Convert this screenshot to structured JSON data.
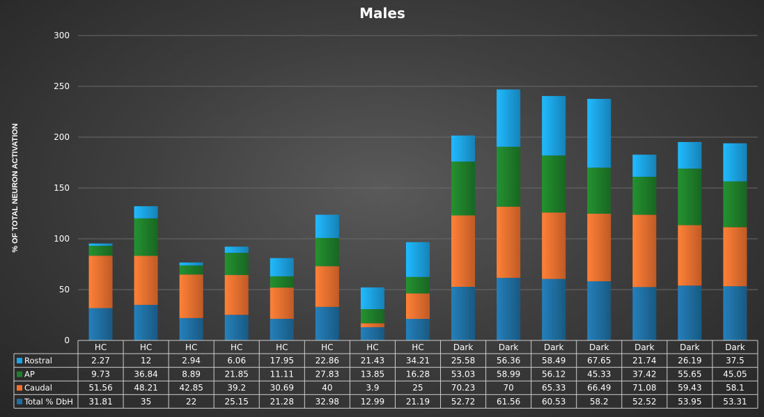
{
  "chart_data": {
    "type": "bar",
    "stacked": true,
    "title": "Males",
    "ylabel": "% OF TOTAL NEURON ACTIVATION",
    "ylim": [
      0,
      300
    ],
    "yticks": [
      0,
      50,
      100,
      150,
      200,
      250,
      300
    ],
    "grid": true,
    "legend": "data table below chart",
    "categories": [
      "HC",
      "HC",
      "HC",
      "HC",
      "HC",
      "HC",
      "HC",
      "HC",
      "Dark",
      "Dark",
      "Dark",
      "Dark",
      "Dark",
      "Dark",
      "Dark"
    ],
    "series": [
      {
        "name": "Total % DbH",
        "color": "#1f6fa3",
        "values": [
          31.81,
          35,
          22,
          25.15,
          21.28,
          32.98,
          12.99,
          21.19,
          52.72,
          61.56,
          60.53,
          58.2,
          52.52,
          53.95,
          53.31
        ]
      },
      {
        "name": "Caudal",
        "color": "#f07030",
        "values": [
          51.56,
          48.21,
          42.85,
          39.2,
          30.69,
          40,
          3.9,
          25,
          70.23,
          70,
          65.33,
          66.49,
          71.08,
          59.43,
          58.1
        ]
      },
      {
        "name": "AP",
        "color": "#1f7f2a",
        "values": [
          9.73,
          36.84,
          8.89,
          21.85,
          11.11,
          27.83,
          13.85,
          16.28,
          53.03,
          58.99,
          56.12,
          45.33,
          37.42,
          55.65,
          45.05
        ]
      },
      {
        "name": "Rostral",
        "color": "#1ca3e6",
        "values": [
          2.27,
          12,
          2.94,
          6.06,
          17.95,
          22.86,
          21.43,
          34.21,
          25.58,
          56.36,
          58.49,
          67.65,
          21.74,
          26.19,
          37.5
        ]
      }
    ],
    "table_row_order": [
      "Rostral",
      "AP",
      "Caudal",
      "Total % DbH"
    ]
  }
}
